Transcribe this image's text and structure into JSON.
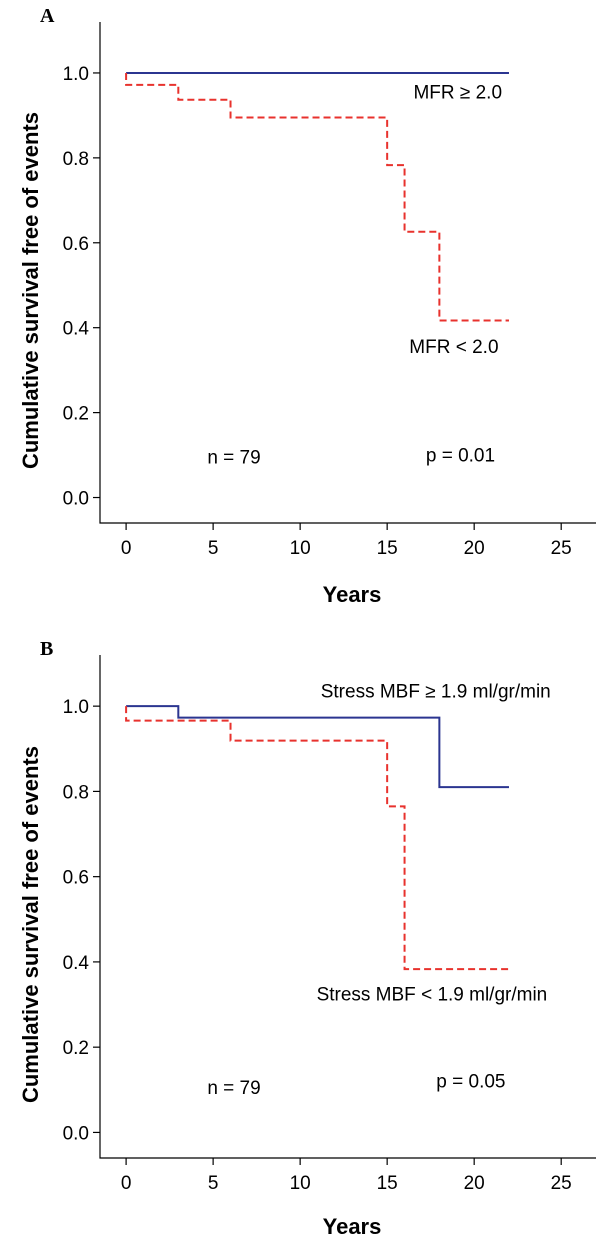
{
  "chart_data": [
    {
      "panel_label": "A",
      "type": "line",
      "step": true,
      "xlabel": "Years",
      "ylabel": "Cumulative survival free of events",
      "xlim": [
        -1.5,
        27
      ],
      "ylim": [
        -0.06,
        1.12
      ],
      "xticks": [
        0,
        5,
        10,
        15,
        20,
        25
      ],
      "yticks": [
        0.0,
        0.2,
        0.4,
        0.6,
        0.8,
        1.0
      ],
      "xtick_labels": [
        "0",
        "5",
        "10",
        "15",
        "20",
        "25"
      ],
      "ytick_labels": [
        "0.0",
        "0.2",
        "0.4",
        "0.6",
        "0.8",
        "1.0"
      ],
      "series": [
        {
          "name": "MFR ≥ 2.0",
          "color": "#2b3590",
          "dashed": false,
          "x": [
            0,
            22
          ],
          "y": [
            1.0,
            1.0
          ]
        },
        {
          "name": "MFR < 2.0",
          "color": "#e8322d",
          "dashed": true,
          "x": [
            0,
            3,
            6,
            15,
            16,
            18,
            22
          ],
          "y": [
            0.972,
            0.937,
            0.895,
            0.783,
            0.626,
            0.417,
            0.417
          ]
        }
      ],
      "series_labels": [
        {
          "text": "MFR ≥ 2.0",
          "x": 21.6,
          "y": 0.94
        },
        {
          "text": "MFR < 2.0",
          "x": 21.4,
          "y": 0.34
        }
      ],
      "annotations": [
        {
          "text": "n = 79",
          "x": 6.2,
          "y": 0.08
        },
        {
          "text": "p = 0.01",
          "x": 21.2,
          "y": 0.085
        }
      ]
    },
    {
      "panel_label": "B",
      "type": "line",
      "step": true,
      "xlabel": "Years",
      "ylabel": "Cumulative survival free of events",
      "xlim": [
        -1.5,
        27
      ],
      "ylim": [
        -0.06,
        1.12
      ],
      "xticks": [
        0,
        5,
        10,
        15,
        20,
        25
      ],
      "yticks": [
        0.0,
        0.2,
        0.4,
        0.6,
        0.8,
        1.0
      ],
      "xtick_labels": [
        "0",
        "5",
        "10",
        "15",
        "20",
        "25"
      ],
      "ytick_labels": [
        "0.0",
        "0.2",
        "0.4",
        "0.6",
        "0.8",
        "1.0"
      ],
      "series": [
        {
          "name": "Stress MBF ≥ 1.9 ml/gr/min",
          "color": "#2b3590",
          "dashed": false,
          "x": [
            0,
            3,
            18,
            22
          ],
          "y": [
            1.0,
            0.973,
            0.81,
            0.81
          ]
        },
        {
          "name": "Stress MBF < 1.9 ml/gr/min",
          "color": "#e8322d",
          "dashed": true,
          "x": [
            0,
            6,
            15,
            16,
            22
          ],
          "y": [
            0.966,
            0.919,
            0.765,
            0.383,
            0.383
          ]
        }
      ],
      "series_labels": [
        {
          "text": "Stress MBF ≥ 1.9 ml/gr/min",
          "x": 24.4,
          "y": 1.02
        },
        {
          "text": "Stress MBF < 1.9 ml/gr/min",
          "x": 24.2,
          "y": 0.31
        }
      ],
      "annotations": [
        {
          "text": "n = 79",
          "x": 6.2,
          "y": 0.09
        },
        {
          "text": "p = 0.05",
          "x": 21.8,
          "y": 0.105
        }
      ]
    }
  ]
}
